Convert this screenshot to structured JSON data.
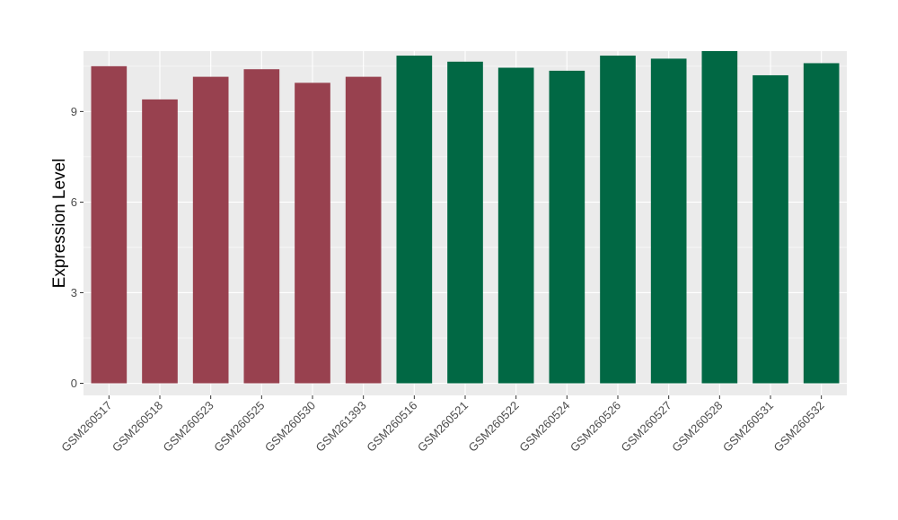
{
  "chart_data": {
    "type": "bar",
    "title": "",
    "xlabel": "",
    "ylabel": "Expression Level",
    "ylim": [
      -0.4,
      11.0
    ],
    "yticks": [
      0,
      3,
      6,
      9
    ],
    "grid": true,
    "legend": "none",
    "categories": [
      "GSM260517",
      "GSM260518",
      "GSM260523",
      "GSM260525",
      "GSM260530",
      "GSM261393",
      "GSM260516",
      "GSM260521",
      "GSM260522",
      "GSM260524",
      "GSM260526",
      "GSM260527",
      "GSM260528",
      "GSM260531",
      "GSM260532"
    ],
    "values": [
      10.5,
      9.4,
      10.15,
      10.4,
      9.95,
      10.15,
      10.85,
      10.65,
      10.45,
      10.35,
      10.85,
      10.75,
      11.0,
      10.2,
      10.6
    ],
    "group_colors": [
      "#98414f",
      "#98414f",
      "#98414f",
      "#98414f",
      "#98414f",
      "#98414f",
      "#016844",
      "#016844",
      "#016844",
      "#016844",
      "#016844",
      "#016844",
      "#016844",
      "#016844",
      "#016844"
    ],
    "panel_background": "#ebebeb",
    "grid_color": "#ffffff"
  }
}
